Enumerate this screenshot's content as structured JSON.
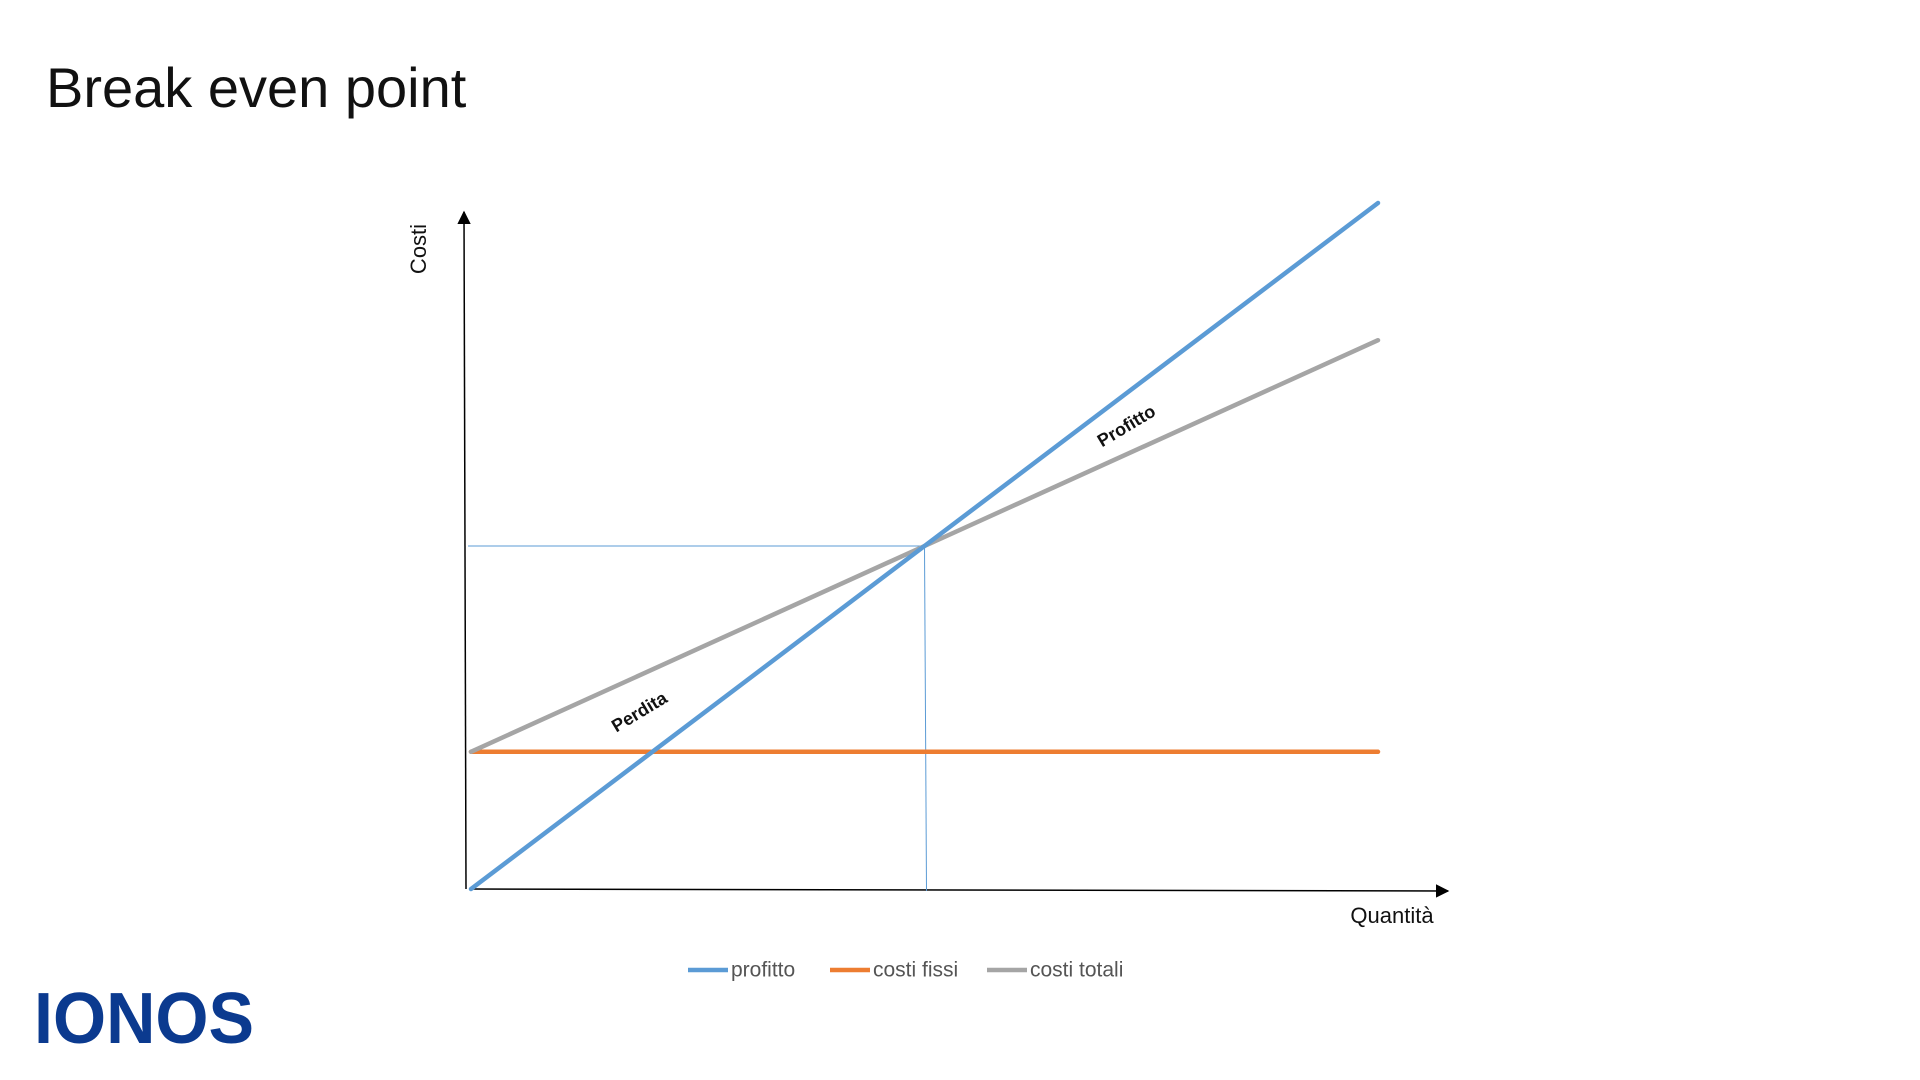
{
  "chart_data": {
    "type": "line",
    "title": "Break even point",
    "x_label": "Quantità",
    "y_label": "Costi",
    "x": [
      0,
      5,
      10
    ],
    "series": [
      {
        "name": "profitto",
        "color": "#5b9bd5",
        "values": [
          0,
          5,
          10
        ]
      },
      {
        "name": "costi fissi",
        "color": "#ed7d31",
        "values": [
          2,
          2,
          2
        ]
      },
      {
        "name": "costi totali",
        "color": "#a5a5a5",
        "values": [
          2,
          5,
          8
        ]
      }
    ],
    "annotations": [
      "Perdita",
      "Profitto"
    ],
    "xlim": [
      0,
      10
    ],
    "ylim": [
      0,
      10
    ],
    "grid": false
  },
  "logo": "IONOS"
}
